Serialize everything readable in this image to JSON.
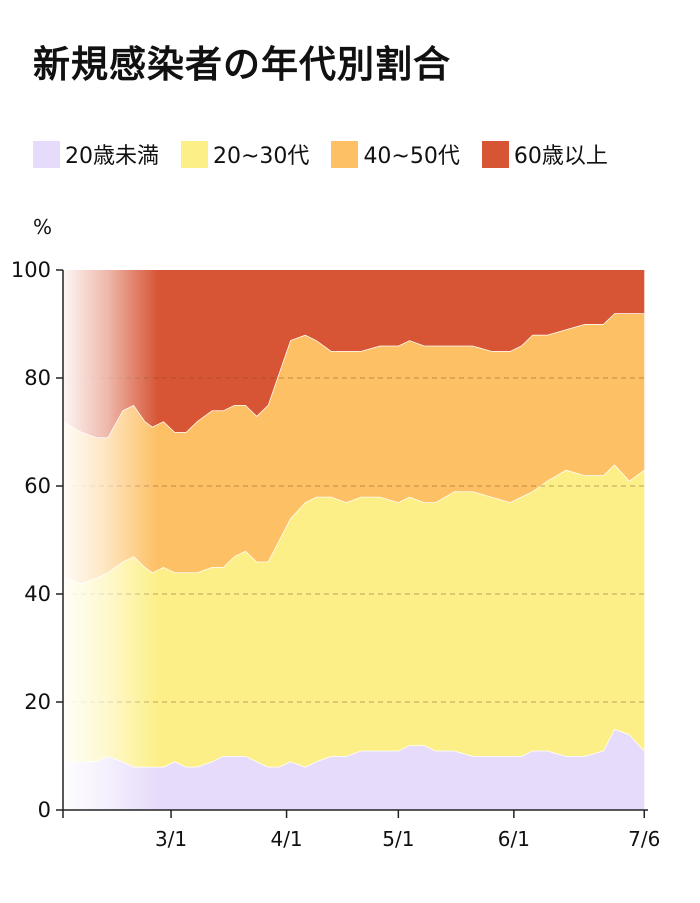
{
  "title": "新規感染者の年代別割合",
  "unit_label": "%",
  "chart_data": {
    "type": "area",
    "stacked": true,
    "normalized_percent": true,
    "title": "新規感染者の年代別割合",
    "ylabel": "%",
    "ylim": [
      0,
      100
    ],
    "yticks": [
      0,
      20,
      40,
      60,
      80,
      100
    ],
    "xlim": [
      0,
      157
    ],
    "x_tick_positions": [
      0,
      29,
      60,
      90,
      121,
      156
    ],
    "x_tick_labels": [
      "",
      "3/1",
      "4/1",
      "5/1",
      "6/1",
      "7/6"
    ],
    "grid": "horizontal dashed",
    "legend": "top",
    "x": [
      0,
      5,
      9,
      12,
      16,
      19,
      22,
      24,
      27,
      30,
      33,
      36,
      40,
      43,
      46,
      49,
      52,
      55,
      58,
      61,
      65,
      68,
      72,
      76,
      80,
      85,
      90,
      93,
      97,
      100,
      105,
      110,
      115,
      120,
      123,
      126,
      130,
      135,
      140,
      145,
      148,
      152,
      156
    ],
    "series": [
      {
        "name": "20歳未満",
        "color": "#e6dbfa",
        "values": [
          9,
          9,
          9,
          10,
          9,
          8,
          8,
          8,
          8,
          9,
          8,
          8,
          9,
          10,
          10,
          10,
          9,
          8,
          8,
          9,
          8,
          9,
          10,
          10,
          11,
          11,
          11,
          12,
          12,
          11,
          11,
          10,
          10,
          10,
          10,
          11,
          11,
          10,
          10,
          11,
          15,
          14,
          11
        ]
      },
      {
        "name": "20~30代",
        "color": "#fdef88",
        "values": [
          34,
          33,
          34,
          34,
          37,
          39,
          37,
          36,
          37,
          35,
          36,
          36,
          36,
          35,
          37,
          38,
          37,
          38,
          42,
          45,
          49,
          49,
          48,
          47,
          47,
          47,
          46,
          46,
          45,
          46,
          48,
          49,
          48,
          47,
          48,
          48,
          50,
          53,
          52,
          51,
          49,
          47,
          52
        ]
      },
      {
        "name": "40~50代",
        "color": "#fdc065",
        "values": [
          29,
          28,
          26,
          25,
          28,
          28,
          27,
          27,
          27,
          26,
          26,
          28,
          29,
          29,
          28,
          27,
          27,
          29,
          31,
          33,
          31,
          29,
          27,
          28,
          27,
          28,
          29,
          29,
          29,
          29,
          27,
          27,
          27,
          28,
          28,
          29,
          27,
          26,
          28,
          28,
          28,
          31,
          29
        ]
      },
      {
        "name": "60歳以上",
        "color": "#d75535",
        "values": [
          28,
          30,
          31,
          31,
          26,
          25,
          28,
          29,
          28,
          30,
          30,
          28,
          26,
          26,
          25,
          25,
          27,
          25,
          19,
          13,
          12,
          13,
          15,
          15,
          15,
          14,
          14,
          13,
          14,
          14,
          14,
          14,
          15,
          15,
          14,
          12,
          12,
          11,
          10,
          10,
          8,
          8,
          8
        ]
      }
    ]
  }
}
